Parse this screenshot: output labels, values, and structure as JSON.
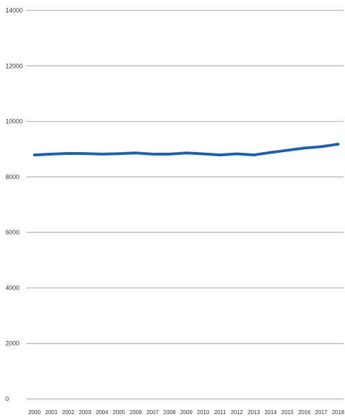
{
  "chart_data": {
    "type": "line",
    "title": "",
    "xlabel": "",
    "ylabel": "",
    "x": [
      "2000",
      "2001",
      "2002",
      "2003",
      "2004",
      "2005",
      "2006",
      "2007",
      "2008",
      "2009",
      "2010",
      "2011",
      "2012",
      "2013",
      "2014",
      "2015",
      "2016",
      "2017",
      "2018"
    ],
    "series": [
      {
        "name": "",
        "color": "#1f5fb0",
        "values": [
          8790,
          8820,
          8845,
          8840,
          8820,
          8835,
          8860,
          8820,
          8820,
          8860,
          8830,
          8790,
          8830,
          8790,
          8880,
          8960,
          9040,
          9090,
          9180
        ]
      }
    ],
    "ylim": [
      0,
      14000
    ],
    "yticks": [
      "0",
      "2000",
      "4000",
      "6000",
      "8000",
      "10000",
      "12000",
      "14000"
    ],
    "grid": true,
    "legend": "none",
    "colors": {
      "gridline": "#b0b0b0",
      "tick_text": "#333333"
    }
  }
}
